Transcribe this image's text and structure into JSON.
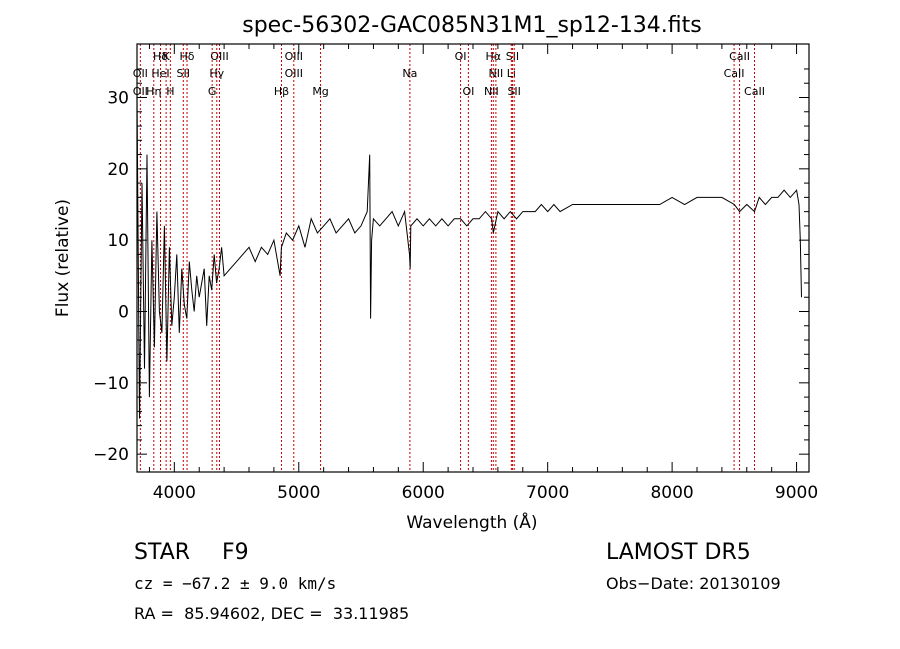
{
  "chart_data": {
    "type": "line",
    "title": "spec-56302-GAC085N31M1_sp12-134.fits",
    "xlabel": "Wavelength (Å)",
    "ylabel": "Flux (relative)",
    "xlim": [
      3700,
      9100
    ],
    "ylim": [
      -22.5,
      37.5
    ],
    "xticks": [
      4000,
      5000,
      6000,
      7000,
      8000,
      9000
    ],
    "yticks": [
      -20,
      -10,
      0,
      10,
      20,
      30
    ],
    "grid": false,
    "line_color": "#000000",
    "marker_color": "#cc0000",
    "series": [
      {
        "values_note": "",
        "x": [
          3700,
          3720,
          3740,
          3760,
          3780,
          3800,
          3820,
          3840,
          3860,
          3880,
          3900,
          3920,
          3940,
          3960,
          3980,
          4000,
          4020,
          4040,
          4060,
          4080,
          4100,
          4120,
          4140,
          4160,
          4180,
          4200,
          4220,
          4240,
          4260,
          4280,
          4300,
          4320,
          4340,
          4360,
          4380,
          4400,
          4450,
          4500,
          4550,
          4600,
          4650,
          4700,
          4750,
          4800,
          4850,
          4860,
          4900,
          4950,
          5000,
          5050,
          5100,
          5150,
          5200,
          5250,
          5300,
          5350,
          5400,
          5450,
          5500,
          5550,
          5570,
          5577,
          5585,
          5600,
          5650,
          5700,
          5750,
          5800,
          5850,
          5890,
          5895,
          5900,
          5950,
          6000,
          6050,
          6100,
          6150,
          6200,
          6250,
          6300,
          6350,
          6400,
          6450,
          6500,
          6550,
          6563,
          6600,
          6650,
          6700,
          6750,
          6800,
          6850,
          6900,
          6950,
          7000,
          7050,
          7100,
          7200,
          7300,
          7400,
          7500,
          7600,
          7700,
          7800,
          7900,
          8000,
          8100,
          8200,
          8300,
          8400,
          8500,
          8542,
          8600,
          8662,
          8700,
          8750,
          8800,
          8850,
          8900,
          8950,
          9000,
          9020,
          9030,
          9040
        ],
        "y": [
          30,
          -15,
          18,
          -8,
          22,
          -12,
          10,
          -5,
          14,
          0,
          -3,
          12,
          -7,
          9,
          -2,
          2,
          8,
          -3,
          6,
          1,
          -1,
          7,
          3,
          0,
          5,
          2,
          4,
          6,
          -2,
          5,
          3,
          8,
          4,
          6,
          9,
          5,
          6,
          7,
          8,
          9,
          7,
          9,
          8,
          10,
          5,
          9,
          11,
          10,
          12,
          9,
          13,
          11,
          12,
          13,
          11,
          12,
          13,
          11,
          12,
          14,
          22,
          -1,
          10,
          13,
          12,
          13,
          14,
          12,
          14,
          8,
          6,
          12,
          13,
          12,
          13,
          12,
          13,
          12,
          13,
          13,
          12,
          13,
          13,
          14,
          13,
          11,
          14,
          13,
          14,
          13,
          14,
          14,
          14,
          15,
          14,
          15,
          14,
          15,
          15,
          15,
          15,
          15,
          15,
          15,
          15,
          16,
          15,
          16,
          16,
          16,
          15,
          14,
          15,
          14,
          16,
          15,
          16,
          16,
          17,
          16,
          17,
          15,
          10,
          2
        ]
      }
    ],
    "spectral_lines": [
      {
        "label": "Hδ",
        "row": 0,
        "x": 3889
      },
      {
        "label": "K",
        "row": 0,
        "x": 3934
      },
      {
        "label": "Hδ",
        "row": 0,
        "x": 4102
      },
      {
        "label": "OIII",
        "row": 0,
        "x": 4363
      },
      {
        "label": "OIII",
        "row": 0,
        "x": 4960
      },
      {
        "label": "OI",
        "row": 0,
        "x": 6300
      },
      {
        "label": "Hα",
        "row": 0,
        "x": 6563
      },
      {
        "label": "SII",
        "row": 0,
        "x": 6717
      },
      {
        "label": "CaII",
        "row": 0,
        "x": 8542
      },
      {
        "label": "OII",
        "row": 1,
        "x": 3727
      },
      {
        "label": "HeI",
        "row": 1,
        "x": 3889
      },
      {
        "label": "SII",
        "row": 1,
        "x": 4072
      },
      {
        "label": "Hγ",
        "row": 1,
        "x": 4341
      },
      {
        "label": "OIII",
        "row": 1,
        "x": 4960
      },
      {
        "label": "Na",
        "row": 1,
        "x": 5893
      },
      {
        "label": "NII",
        "row": 1,
        "x": 6584
      },
      {
        "label": "Li",
        "row": 1,
        "x": 6708
      },
      {
        "label": "CaII",
        "row": 1,
        "x": 8498
      },
      {
        "label": "OII",
        "row": 2,
        "x": 3727
      },
      {
        "label": "Hη",
        "row": 2,
        "x": 3835
      },
      {
        "label": "H",
        "row": 2,
        "x": 3968
      },
      {
        "label": "G",
        "row": 2,
        "x": 4304
      },
      {
        "label": "Hβ",
        "row": 2,
        "x": 4861
      },
      {
        "label": "Mg",
        "row": 2,
        "x": 5175
      },
      {
        "label": "OI",
        "row": 2,
        "x": 6363
      },
      {
        "label": "NII",
        "row": 2,
        "x": 6548
      },
      {
        "label": "SII",
        "row": 2,
        "x": 6731
      },
      {
        "label": "CaII",
        "row": 2,
        "x": 8662
      }
    ]
  },
  "info": {
    "class_label": "STAR",
    "subclass": "F9",
    "survey": "LAMOST DR5",
    "cz": "cz = −67.2 ± 9.0 km/s",
    "obs_date": "Obs−Date: 20130109",
    "coords": "RA =  85.94602, DEC =  33.11985"
  }
}
